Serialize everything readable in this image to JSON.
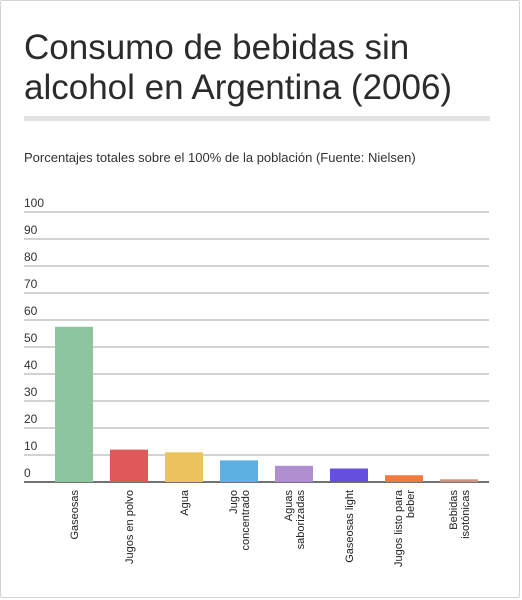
{
  "title": "Consumo de bebidas sin alcohol en Argentina (2006)",
  "subtitle": "Porcentajes totales sobre el 100% de la población (Fuente: Nielsen)",
  "chart_data": {
    "type": "bar",
    "title": "Consumo de bebidas sin alcohol en Argentina (2006)",
    "subtitle": "Porcentajes totales sobre el 100% de la población (Fuente: Nielsen)",
    "categories": [
      [
        "Gaseosas"
      ],
      [
        "Jugos en polvo"
      ],
      [
        "Agua"
      ],
      [
        "Jugo",
        "concentrado"
      ],
      [
        "Aguas",
        "saborizadas"
      ],
      [
        "Gaseosas light"
      ],
      [
        "Jugos listo para",
        "beber"
      ],
      [
        "Bebidas",
        "isotónicas"
      ]
    ],
    "values": [
      57.5,
      12,
      11,
      8,
      6,
      5,
      2.5,
      1
    ],
    "colors": [
      "#8cc5a0",
      "#e05959",
      "#ecc45f",
      "#5cb0e2",
      "#b08ed0",
      "#6550de",
      "#f27a3c",
      "#c99480"
    ],
    "ylim": [
      0,
      100
    ],
    "yticks": [
      0,
      10,
      20,
      30,
      40,
      50,
      60,
      70,
      80,
      90,
      100
    ],
    "grid": true,
    "xlabel": "",
    "ylabel": ""
  }
}
